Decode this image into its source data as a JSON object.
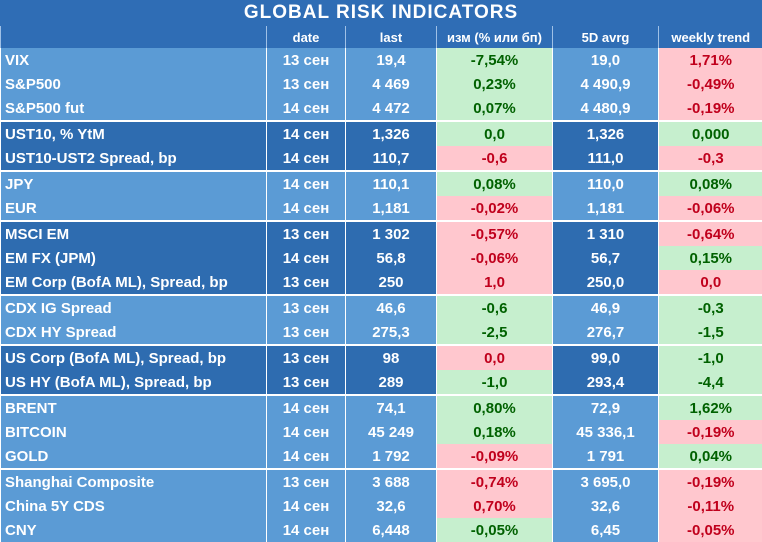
{
  "title": "GLOBAL   RISK   INDICATORS",
  "headers": [
    "",
    "date",
    "last",
    "изм (% или бп)",
    "5D avrg",
    "weekly trend"
  ],
  "rows": [
    {
      "name": "VIX",
      "date": "13 сен",
      "last": "19,4",
      "chg": "-7,54%",
      "chg_sign": "pos",
      "avg": "19,0",
      "trend": "1,71%",
      "trend_sign": "neg",
      "group": "g-light",
      "sep": false
    },
    {
      "name": "S&P500",
      "date": "13 сен",
      "last": "4 469",
      "chg": "0,23%",
      "chg_sign": "pos",
      "avg": "4 490,9",
      "trend": "-0,49%",
      "trend_sign": "neg",
      "group": "g-light",
      "sep": false
    },
    {
      "name": "S&P500 fut",
      "date": "14 сен",
      "last": "4 472",
      "chg": "0,07%",
      "chg_sign": "pos",
      "avg": "4 480,9",
      "trend": "-0,19%",
      "trend_sign": "neg",
      "group": "g-light",
      "sep": false
    },
    {
      "name": "UST10, % YtM",
      "date": "14 сен",
      "last": "1,326",
      "chg": "0,0",
      "chg_sign": "pos",
      "avg": "1,326",
      "trend": "0,000",
      "trend_sign": "pos",
      "group": "g-dark",
      "sep": true
    },
    {
      "name": "UST10-UST2 Spread, bp",
      "date": "14 сен",
      "last": "110,7",
      "chg": "-0,6",
      "chg_sign": "neg",
      "avg": "111,0",
      "trend": "-0,3",
      "trend_sign": "neg",
      "group": "g-dark",
      "sep": false
    },
    {
      "name": "JPY",
      "date": "14 сен",
      "last": "110,1",
      "chg": "0,08%",
      "chg_sign": "pos",
      "avg": "110,0",
      "trend": "0,08%",
      "trend_sign": "pos",
      "group": "g-light",
      "sep": true
    },
    {
      "name": "EUR",
      "date": "14 сен",
      "last": "1,181",
      "chg": "-0,02%",
      "chg_sign": "neg",
      "avg": "1,181",
      "trend": "-0,06%",
      "trend_sign": "neg",
      "group": "g-light",
      "sep": false
    },
    {
      "name": "MSCI EM",
      "date": "13 сен",
      "last": "1 302",
      "chg": "-0,57%",
      "chg_sign": "neg",
      "avg": "1 310",
      "trend": "-0,64%",
      "trend_sign": "neg",
      "group": "g-dark",
      "sep": true
    },
    {
      "name": "EM FX (JPM)",
      "date": "14 сен",
      "last": "56,8",
      "chg": "-0,06%",
      "chg_sign": "neg",
      "avg": "56,7",
      "trend": "0,15%",
      "trend_sign": "pos",
      "group": "g-dark",
      "sep": false
    },
    {
      "name": "EM Corp (BofA ML), Spread, bp",
      "date": "13 сен",
      "last": "250",
      "chg": "1,0",
      "chg_sign": "neg",
      "avg": "250,0",
      "trend": "0,0",
      "trend_sign": "neg",
      "group": "g-dark",
      "sep": false
    },
    {
      "name": "CDX IG Spread",
      "date": "13 сен",
      "last": "46,6",
      "chg": "-0,6",
      "chg_sign": "pos",
      "avg": "46,9",
      "trend": "-0,3",
      "trend_sign": "pos",
      "group": "g-light",
      "sep": true
    },
    {
      "name": "CDX HY Spread",
      "date": "13 сен",
      "last": "275,3",
      "chg": "-2,5",
      "chg_sign": "pos",
      "avg": "276,7",
      "trend": "-1,5",
      "trend_sign": "pos",
      "group": "g-light",
      "sep": false
    },
    {
      "name": "US Corp (BofA ML), Spread, bp",
      "date": "13 сен",
      "last": "98",
      "chg": "0,0",
      "chg_sign": "neg",
      "avg": "99,0",
      "trend": "-1,0",
      "trend_sign": "pos",
      "group": "g-dark",
      "sep": true
    },
    {
      "name": "US HY (BofA ML), Spread, bp",
      "date": "13 сен",
      "last": "289",
      "chg": "-1,0",
      "chg_sign": "pos",
      "avg": "293,4",
      "trend": "-4,4",
      "trend_sign": "pos",
      "group": "g-dark",
      "sep": false
    },
    {
      "name": "BRENT",
      "date": "14 сен",
      "last": "74,1",
      "chg": "0,80%",
      "chg_sign": "pos",
      "avg": "72,9",
      "trend": "1,62%",
      "trend_sign": "pos",
      "group": "g-light",
      "sep": true
    },
    {
      "name": "BITCOIN",
      "date": "14 сен",
      "last": "45 249",
      "chg": "0,18%",
      "chg_sign": "pos",
      "avg": "45 336,1",
      "trend": "-0,19%",
      "trend_sign": "neg",
      "group": "g-light",
      "sep": false
    },
    {
      "name": "GOLD",
      "date": "14 сен",
      "last": "1 792",
      "chg": "-0,09%",
      "chg_sign": "neg",
      "avg": "1 791",
      "trend": "0,04%",
      "trend_sign": "pos",
      "group": "g-light",
      "sep": false
    },
    {
      "name": "Shanghai Composite",
      "date": "13 сен",
      "last": "3 688",
      "chg": "-0,74%",
      "chg_sign": "neg",
      "avg": "3 695,0",
      "trend": "-0,19%",
      "trend_sign": "neg",
      "group": "g-light",
      "sep": true
    },
    {
      "name": "China 5Y CDS",
      "date": "14 сен",
      "last": "32,6",
      "chg": "0,70%",
      "chg_sign": "neg",
      "avg": "32,6",
      "trend": "-0,11%",
      "trend_sign": "neg",
      "group": "g-light",
      "sep": false
    },
    {
      "name": "CNY",
      "date": "14 сен",
      "last": "6,448",
      "chg": "-0,05%",
      "chg_sign": "pos",
      "avg": "6,45",
      "trend": "-0,05%",
      "trend_sign": "neg",
      "group": "g-light",
      "sep": false
    }
  ]
}
